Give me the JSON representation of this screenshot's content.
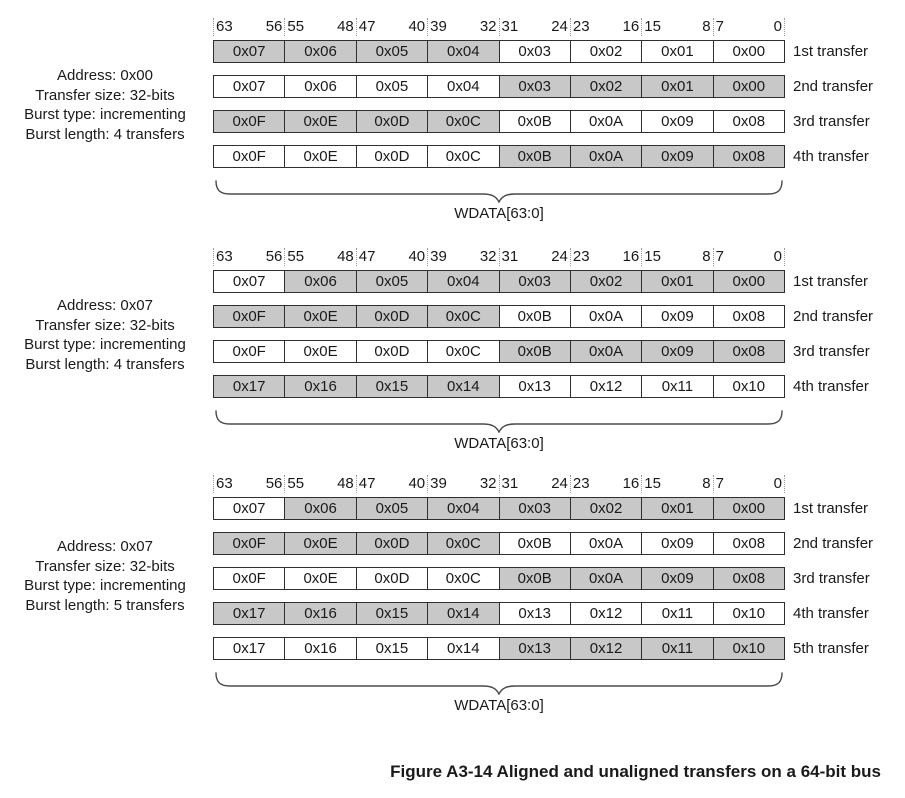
{
  "figure": {
    "caption": "Figure A3-14 Aligned and unaligned transfers on a 64-bit bus"
  },
  "wdata_label": "WDATA[63:0]",
  "bit_header": [
    {
      "high": "63",
      "low": "56"
    },
    {
      "high": "55",
      "low": "48"
    },
    {
      "high": "47",
      "low": "40"
    },
    {
      "high": "39",
      "low": "32"
    },
    {
      "high": "31",
      "low": "24"
    },
    {
      "high": "23",
      "low": "16"
    },
    {
      "high": "15",
      "low": "8"
    },
    {
      "high": "7",
      "low": "0"
    }
  ],
  "colors": {
    "shaded_cell": "#c8c8c8",
    "cell_border": "#2f2f2f",
    "header_tick": "#999999"
  },
  "groups": [
    {
      "info_lines": [
        "Address: 0x00",
        "Transfer size: 32-bits",
        "Burst type: incrementing",
        "Burst length: 4 transfers"
      ],
      "transfers": [
        {
          "label": "1st transfer",
          "values": [
            "0x07",
            "0x06",
            "0x05",
            "0x04",
            "0x03",
            "0x02",
            "0x01",
            "0x00"
          ],
          "shaded": [
            true,
            true,
            true,
            true,
            false,
            false,
            false,
            false
          ]
        },
        {
          "label": "2nd transfer",
          "values": [
            "0x07",
            "0x06",
            "0x05",
            "0x04",
            "0x03",
            "0x02",
            "0x01",
            "0x00"
          ],
          "shaded": [
            false,
            false,
            false,
            false,
            true,
            true,
            true,
            true
          ]
        },
        {
          "label": "3rd transfer",
          "values": [
            "0x0F",
            "0x0E",
            "0x0D",
            "0x0C",
            "0x0B",
            "0x0A",
            "0x09",
            "0x08"
          ],
          "shaded": [
            true,
            true,
            true,
            true,
            false,
            false,
            false,
            false
          ]
        },
        {
          "label": "4th transfer",
          "values": [
            "0x0F",
            "0x0E",
            "0x0D",
            "0x0C",
            "0x0B",
            "0x0A",
            "0x09",
            "0x08"
          ],
          "shaded": [
            false,
            false,
            false,
            false,
            true,
            true,
            true,
            true
          ]
        }
      ]
    },
    {
      "info_lines": [
        "Address: 0x07",
        "Transfer size: 32-bits",
        "Burst type: incrementing",
        "Burst length: 4 transfers"
      ],
      "transfers": [
        {
          "label": "1st transfer",
          "values": [
            "0x07",
            "0x06",
            "0x05",
            "0x04",
            "0x03",
            "0x02",
            "0x01",
            "0x00"
          ],
          "shaded": [
            false,
            true,
            true,
            true,
            true,
            true,
            true,
            true
          ]
        },
        {
          "label": "2nd transfer",
          "values": [
            "0x0F",
            "0x0E",
            "0x0D",
            "0x0C",
            "0x0B",
            "0x0A",
            "0x09",
            "0x08"
          ],
          "shaded": [
            true,
            true,
            true,
            true,
            false,
            false,
            false,
            false
          ]
        },
        {
          "label": "3rd transfer",
          "values": [
            "0x0F",
            "0x0E",
            "0x0D",
            "0x0C",
            "0x0B",
            "0x0A",
            "0x09",
            "0x08"
          ],
          "shaded": [
            false,
            false,
            false,
            false,
            true,
            true,
            true,
            true
          ]
        },
        {
          "label": "4th transfer",
          "values": [
            "0x17",
            "0x16",
            "0x15",
            "0x14",
            "0x13",
            "0x12",
            "0x11",
            "0x10"
          ],
          "shaded": [
            true,
            true,
            true,
            true,
            false,
            false,
            false,
            false
          ]
        }
      ]
    },
    {
      "info_lines": [
        "Address: 0x07",
        "Transfer size: 32-bits",
        "Burst type: incrementing",
        "Burst length: 5 transfers"
      ],
      "transfers": [
        {
          "label": "1st transfer",
          "values": [
            "0x07",
            "0x06",
            "0x05",
            "0x04",
            "0x03",
            "0x02",
            "0x01",
            "0x00"
          ],
          "shaded": [
            false,
            true,
            true,
            true,
            true,
            true,
            true,
            true
          ]
        },
        {
          "label": "2nd transfer",
          "values": [
            "0x0F",
            "0x0E",
            "0x0D",
            "0x0C",
            "0x0B",
            "0x0A",
            "0x09",
            "0x08"
          ],
          "shaded": [
            true,
            true,
            true,
            true,
            false,
            false,
            false,
            false
          ]
        },
        {
          "label": "3rd transfer",
          "values": [
            "0x0F",
            "0x0E",
            "0x0D",
            "0x0C",
            "0x0B",
            "0x0A",
            "0x09",
            "0x08"
          ],
          "shaded": [
            false,
            false,
            false,
            false,
            true,
            true,
            true,
            true
          ]
        },
        {
          "label": "4th transfer",
          "values": [
            "0x17",
            "0x16",
            "0x15",
            "0x14",
            "0x13",
            "0x12",
            "0x11",
            "0x10"
          ],
          "shaded": [
            true,
            true,
            true,
            true,
            false,
            false,
            false,
            false
          ]
        },
        {
          "label": "5th transfer",
          "values": [
            "0x17",
            "0x16",
            "0x15",
            "0x14",
            "0x13",
            "0x12",
            "0x11",
            "0x10"
          ],
          "shaded": [
            false,
            false,
            false,
            false,
            true,
            true,
            true,
            true
          ]
        }
      ]
    }
  ]
}
